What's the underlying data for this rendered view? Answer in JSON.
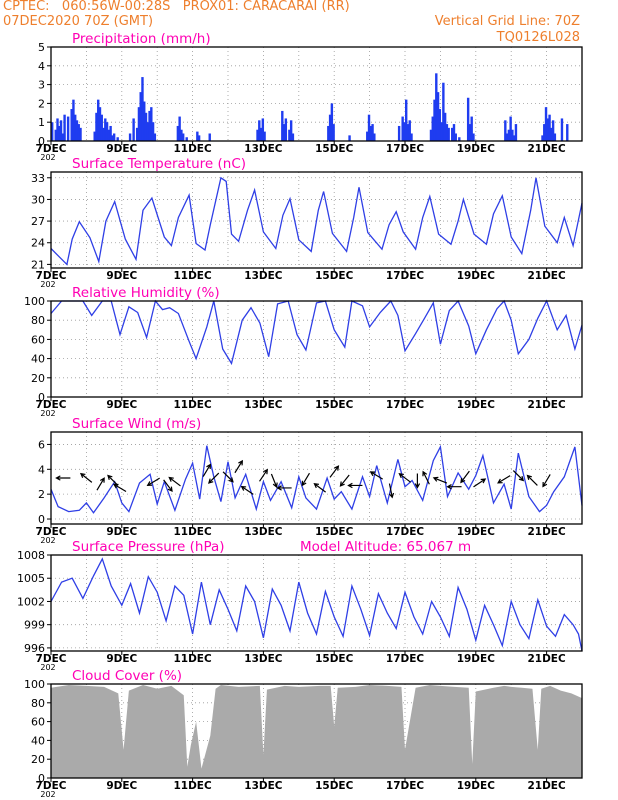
{
  "header": {
    "line1": "CPTEC:   060:56W-00:28S   PROX01: CARACARAI (RR)",
    "line2": "07DEC2020 70Z (GMT)",
    "vgrid": "Vertical Grid Line: 70Z",
    "code": "TQ0126L028"
  },
  "x_tick_labels": [
    "7DEC",
    "9DEC",
    "11DEC",
    "13DEC",
    "15DEC",
    "17DEC",
    "19DEC",
    "21DEC"
  ],
  "year_stub": "202",
  "colors": {
    "title": "#ff00b4",
    "header": "#ee7f2d",
    "line": "#2f3fe6",
    "bar": "#1f3cf0",
    "cloud": "#aaaaaa",
    "wind_arrow": "#000000"
  },
  "chart_data": [
    {
      "id": "precip",
      "type": "bar",
      "title": "Precipitation (mm/h)",
      "xlim": [
        7,
        22
      ],
      "ylim": [
        0,
        5
      ],
      "yticks": [
        0,
        1,
        2,
        3,
        4,
        5
      ],
      "x": [
        7.0,
        7.1,
        7.15,
        7.2,
        7.25,
        7.3,
        7.35,
        7.45,
        7.55,
        7.6,
        7.65,
        7.7,
        7.75,
        7.8,
        8.2,
        8.25,
        8.3,
        8.35,
        8.4,
        8.45,
        8.5,
        8.55,
        8.6,
        8.65,
        8.7,
        8.75,
        8.85,
        9.2,
        9.3,
        9.4,
        9.45,
        9.5,
        9.55,
        9.6,
        9.65,
        9.7,
        9.75,
        9.8,
        9.85,
        9.9,
        10.55,
        10.6,
        10.65,
        10.7,
        10.8,
        11.1,
        11.15,
        11.45,
        12.8,
        12.85,
        12.9,
        12.95,
        13.0,
        13.5,
        13.55,
        13.6,
        13.7,
        13.75,
        13.8,
        14.8,
        14.85,
        14.9,
        14.95,
        15.4,
        15.9,
        15.95,
        16.0,
        16.05,
        16.1,
        16.8,
        16.9,
        16.95,
        17.0,
        17.05,
        17.1,
        17.15,
        17.7,
        17.75,
        17.8,
        17.85,
        17.9,
        17.95,
        18.0,
        18.05,
        18.1,
        18.15,
        18.2,
        18.3,
        18.35,
        18.4,
        18.5,
        18.75,
        18.8,
        18.85,
        18.9,
        19.8,
        19.85,
        19.9,
        19.95,
        20.0,
        20.05,
        20.1,
        20.85,
        20.9,
        20.95,
        21.0,
        21.05,
        21.1,
        21.15,
        21.2,
        21.4,
        21.55
      ],
      "values": [
        1.0,
        0.6,
        1.2,
        0.8,
        1.1,
        0.4,
        1.4,
        1.3,
        1.7,
        2.2,
        1.4,
        1.1,
        0.9,
        0.7,
        0.5,
        1.5,
        2.2,
        1.8,
        1.4,
        0.7,
        1.2,
        1.0,
        0.6,
        0.8,
        0.3,
        0.4,
        0.2,
        0.4,
        1.2,
        0.7,
        1.8,
        2.6,
        3.4,
        2.1,
        1.5,
        1.0,
        1.6,
        1.8,
        1.0,
        0.4,
        0.8,
        1.3,
        0.6,
        0.4,
        0.2,
        0.5,
        0.3,
        0.4,
        0.6,
        1.1,
        0.7,
        1.2,
        0.5,
        1.6,
        0.9,
        1.2,
        0.6,
        1.1,
        0.4,
        0.8,
        1.4,
        2.0,
        0.9,
        0.3,
        0.5,
        1.4,
        0.8,
        0.9,
        0.4,
        0.8,
        1.3,
        1.0,
        2.2,
        0.9,
        1.1,
        0.4,
        0.6,
        1.3,
        2.2,
        3.6,
        2.6,
        1.7,
        1.0,
        3.1,
        1.5,
        0.9,
        0.7,
        0.7,
        0.9,
        0.4,
        0.2,
        2.3,
        0.9,
        1.3,
        0.4,
        1.1,
        0.4,
        0.6,
        1.3,
        0.6,
        0.3,
        0.9,
        0.3,
        0.9,
        1.8,
        1.2,
        1.4,
        0.7,
        1.1,
        0.4,
        1.2,
        0.9
      ]
    },
    {
      "id": "temp",
      "type": "line",
      "title": "Surface Temperature (nC)",
      "xlim": [
        7,
        22
      ],
      "ylim": [
        20.5,
        33.8
      ],
      "yticks": [
        21,
        24,
        27,
        30,
        33
      ],
      "x": [
        7.0,
        7.2,
        7.45,
        7.6,
        7.8,
        8.1,
        8.35,
        8.55,
        8.8,
        9.1,
        9.4,
        9.6,
        9.85,
        10.2,
        10.4,
        10.6,
        10.9,
        11.1,
        11.35,
        11.5,
        11.8,
        11.95,
        12.1,
        12.3,
        12.55,
        12.75,
        13.0,
        13.35,
        13.55,
        13.75,
        14.0,
        14.35,
        14.55,
        14.7,
        14.95,
        15.35,
        15.55,
        15.7,
        15.95,
        16.35,
        16.55,
        16.75,
        16.95,
        17.3,
        17.5,
        17.7,
        17.95,
        18.3,
        18.5,
        18.65,
        18.95,
        19.3,
        19.5,
        19.75,
        20.0,
        20.3,
        20.55,
        20.7,
        20.95,
        21.3,
        21.5,
        21.75,
        22.0
      ],
      "values": [
        23.2,
        22.2,
        21.0,
        24.5,
        26.9,
        24.7,
        21.4,
        27.0,
        29.7,
        24.5,
        21.7,
        28.5,
        30.2,
        24.8,
        23.6,
        27.5,
        30.6,
        23.9,
        23.0,
        26.5,
        33.0,
        32.5,
        25.2,
        24.2,
        28.5,
        31.3,
        25.5,
        23.2,
        27.8,
        30.1,
        24.4,
        22.8,
        28.5,
        31.1,
        25.3,
        22.8,
        27.5,
        31.7,
        25.4,
        23.1,
        26.5,
        28.3,
        25.5,
        23.1,
        27.5,
        30.4,
        25.2,
        23.8,
        27.0,
        30.0,
        25.2,
        23.8,
        28.0,
        30.5,
        24.8,
        22.5,
        28.5,
        33.0,
        26.3,
        24.0,
        27.5,
        23.6,
        29.5
      ]
    },
    {
      "id": "rh",
      "type": "line",
      "title": "Relative Humidity (%)",
      "xlim": [
        7,
        22
      ],
      "ylim": [
        0,
        100
      ],
      "yticks": [
        0,
        20,
        40,
        60,
        80,
        100
      ],
      "x": [
        7.0,
        7.3,
        7.6,
        7.9,
        8.15,
        8.45,
        8.7,
        8.95,
        9.2,
        9.45,
        9.7,
        9.95,
        10.15,
        10.35,
        10.6,
        10.9,
        11.1,
        11.4,
        11.6,
        11.85,
        12.1,
        12.4,
        12.65,
        12.9,
        13.15,
        13.4,
        13.7,
        13.95,
        14.2,
        14.5,
        14.75,
        15.0,
        15.3,
        15.5,
        15.8,
        16.0,
        16.3,
        16.6,
        16.8,
        17.0,
        17.3,
        17.55,
        17.8,
        18.0,
        18.25,
        18.5,
        18.8,
        19.0,
        19.3,
        19.6,
        19.8,
        20.0,
        20.2,
        20.5,
        20.75,
        21.0,
        21.3,
        21.55,
        21.8,
        22.0
      ],
      "values": [
        87,
        100,
        100,
        100,
        85,
        100,
        100,
        65,
        94,
        88,
        62,
        100,
        91,
        93,
        87,
        58,
        40,
        73,
        100,
        50,
        35,
        80,
        93,
        77,
        42,
        97,
        100,
        65,
        49,
        98,
        100,
        70,
        52,
        100,
        95,
        73,
        88,
        100,
        85,
        48,
        66,
        82,
        98,
        55,
        90,
        100,
        74,
        45,
        70,
        92,
        100,
        80,
        45,
        60,
        82,
        100,
        70,
        85,
        50,
        75
      ]
    },
    {
      "id": "wind",
      "type": "line",
      "title": "Surface Wind (m/s)",
      "xlim": [
        7,
        22
      ],
      "ylim": [
        -0.4,
        7.0
      ],
      "yticks": [
        0,
        2,
        4,
        6
      ],
      "x": [
        7.0,
        7.2,
        7.5,
        7.8,
        8.0,
        8.2,
        8.5,
        8.8,
        9.0,
        9.2,
        9.5,
        9.8,
        10.0,
        10.2,
        10.5,
        10.8,
        11.0,
        11.2,
        11.4,
        11.6,
        11.8,
        12.0,
        12.2,
        12.5,
        12.8,
        13.0,
        13.2,
        13.5,
        13.8,
        14.0,
        14.2,
        14.5,
        14.8,
        15.0,
        15.2,
        15.5,
        15.8,
        16.0,
        16.2,
        16.5,
        16.8,
        17.0,
        17.2,
        17.5,
        17.8,
        18.0,
        18.2,
        18.5,
        18.8,
        19.0,
        19.2,
        19.5,
        19.8,
        20.0,
        20.2,
        20.5,
        20.8,
        21.0,
        21.2,
        21.5,
        21.8,
        22.0
      ],
      "values": [
        2.4,
        1.0,
        0.6,
        0.7,
        1.3,
        0.5,
        1.7,
        3.0,
        1.3,
        0.6,
        2.9,
        3.6,
        1.2,
        3.0,
        0.7,
        3.2,
        4.5,
        1.6,
        5.9,
        3.4,
        1.4,
        4.6,
        1.7,
        3.6,
        0.8,
        3.0,
        1.5,
        3.0,
        0.9,
        3.4,
        1.7,
        0.8,
        3.3,
        1.6,
        2.2,
        0.8,
        3.4,
        1.8,
        4.3,
        1.3,
        4.8,
        2.6,
        3.1,
        1.5,
        4.7,
        5.8,
        1.8,
        3.7,
        2.4,
        3.5,
        5.1,
        1.3,
        2.8,
        0.8,
        5.3,
        1.8,
        0.6,
        1.1,
        2.2,
        3.4,
        5.8,
        1.1
      ],
      "arrows": {
        "x": [
          7.35,
          8.0,
          8.4,
          8.75,
          8.95,
          9.9,
          10.3,
          10.5,
          11.4,
          11.6,
          12.0,
          12.3,
          12.55,
          13.0,
          13.3,
          13.6,
          14.2,
          14.6,
          15.0,
          15.3,
          15.6,
          16.2,
          16.6,
          17.0,
          17.35,
          17.6,
          18.0,
          18.4,
          18.7,
          19.1,
          19.8,
          20.2,
          20.6,
          21.0
        ],
        "y": [
          3.3,
          3.3,
          2.8,
          3.1,
          2.5,
          3.0,
          2.7,
          3.0,
          3.9,
          3.3,
          3.4,
          4.2,
          2.3,
          3.5,
          3.1,
          2.5,
          3.2,
          2.5,
          3.8,
          3.1,
          2.7,
          3.5,
          2.3,
          3.3,
          3.1,
          3.3,
          3.1,
          2.6,
          3.4,
          2.9,
          3.2,
          3.5,
          3.1,
          3.1
        ],
        "u": [
          -0.5,
          -0.5,
          0.3,
          -0.4,
          -0.5,
          -0.5,
          0.3,
          -0.4,
          0.3,
          -0.4,
          0.4,
          0.5,
          -0.3,
          0.4,
          0.2,
          -0.6,
          -0.3,
          -0.4,
          0.3,
          -0.4,
          -0.3,
          -0.5,
          0.1,
          -0.4,
          0.0,
          -0.3,
          -0.5,
          -0.3,
          -0.3,
          0.6,
          -0.5,
          0.4,
          -0.4,
          -0.3
        ],
        "v": [
          0.0,
          0.4,
          0.5,
          0.4,
          0.3,
          -0.3,
          -0.4,
          0.3,
          0.5,
          -0.4,
          -0.4,
          0.8,
          0.2,
          0.6,
          -0.5,
          0.0,
          -0.5,
          0.3,
          0.4,
          -0.5,
          0.0,
          0.3,
          -0.5,
          0.3,
          -0.6,
          0.6,
          0.2,
          0.0,
          -0.4,
          0.4,
          -0.3,
          -0.4,
          0.4,
          -0.5
        ]
      }
    },
    {
      "id": "pres",
      "type": "line",
      "title": "Surface Pressure (hPa)",
      "annotation": "Model Altitude: 65.067 m",
      "xlim": [
        7,
        22
      ],
      "ylim": [
        995.6,
        1008.0
      ],
      "yticks": [
        996,
        999,
        1002,
        1005,
        1008
      ],
      "x": [
        7.0,
        7.3,
        7.6,
        7.9,
        8.2,
        8.45,
        8.7,
        9.0,
        9.25,
        9.5,
        9.75,
        10.0,
        10.25,
        10.5,
        10.75,
        11.0,
        11.25,
        11.5,
        11.75,
        12.0,
        12.25,
        12.5,
        12.75,
        13.0,
        13.25,
        13.5,
        13.75,
        14.0,
        14.25,
        14.5,
        14.75,
        15.0,
        15.25,
        15.5,
        15.75,
        16.0,
        16.25,
        16.5,
        16.75,
        17.0,
        17.25,
        17.5,
        17.75,
        18.0,
        18.25,
        18.5,
        18.75,
        19.0,
        19.25,
        19.5,
        19.75,
        20.0,
        20.25,
        20.5,
        20.75,
        21.0,
        21.25,
        21.5,
        21.75,
        21.9,
        22.0
      ],
      "values": [
        1002.0,
        1004.5,
        1005.0,
        1002.4,
        1005.3,
        1007.5,
        1004.0,
        1001.5,
        1004.3,
        1000.5,
        1005.2,
        1003.2,
        999.5,
        1004.0,
        1002.8,
        997.8,
        1004.5,
        999.0,
        1003.5,
        1001.0,
        998.2,
        1004.0,
        1002.0,
        997.3,
        1003.6,
        1001.5,
        998.2,
        1004.5,
        1000.5,
        997.8,
        1003.3,
        1000.0,
        997.5,
        1004.0,
        1001.0,
        997.6,
        1003.0,
        1000.5,
        998.5,
        1003.2,
        1000.0,
        997.8,
        1002.0,
        1000.0,
        997.5,
        1003.8,
        1001.0,
        997.0,
        1001.5,
        999.0,
        996.3,
        1002.0,
        999.0,
        997.2,
        1002.2,
        998.8,
        997.5,
        1000.3,
        999.0,
        997.8,
        995.6
      ]
    },
    {
      "id": "cloud",
      "type": "area",
      "title": "Cloud Cover (%)",
      "xlim": [
        7,
        22
      ],
      "ylim": [
        0,
        100
      ],
      "yticks": [
        0,
        20,
        40,
        60,
        80,
        100
      ],
      "x": [
        7.0,
        7.5,
        8.0,
        8.5,
        8.9,
        9.05,
        9.2,
        9.6,
        10.0,
        10.4,
        10.75,
        10.85,
        10.95,
        11.1,
        11.25,
        11.5,
        11.65,
        11.8,
        12.3,
        12.9,
        13.0,
        13.1,
        13.6,
        14.0,
        14.6,
        14.9,
        15.0,
        15.1,
        15.6,
        16.0,
        16.5,
        16.9,
        17.0,
        17.3,
        17.7,
        18.0,
        18.4,
        18.8,
        18.9,
        19.0,
        19.5,
        19.8,
        20.0,
        20.3,
        20.6,
        20.75,
        20.85,
        21.1,
        21.4,
        21.7,
        22.0
      ],
      "values": [
        96,
        99,
        98,
        97,
        90,
        30,
        93,
        99,
        95,
        98,
        88,
        12,
        35,
        60,
        10,
        45,
        95,
        99,
        97,
        98,
        25,
        94,
        98,
        97,
        98,
        98,
        55,
        96,
        97,
        99,
        98,
        97,
        30,
        96,
        99,
        98,
        97,
        96,
        15,
        92,
        96,
        98,
        97,
        96,
        95,
        30,
        95,
        98,
        93,
        90,
        85
      ]
    }
  ]
}
